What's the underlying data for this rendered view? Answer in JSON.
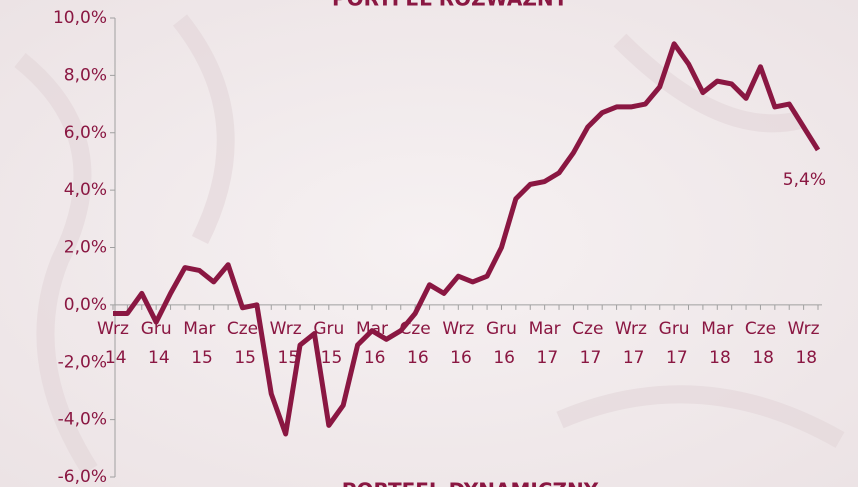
{
  "chart_data": {
    "type": "line",
    "title": "PORTFEL ROZWAŻNY",
    "subtitle": "PORTFEL DYNAMICZNY",
    "categories": [
      "Wrz 14",
      null,
      null,
      "Gru 14",
      null,
      null,
      "Mar 15",
      null,
      null,
      "Cze 15",
      null,
      null,
      "Wrz 15",
      null,
      null,
      "Gru 15",
      null,
      null,
      "Mar 16",
      null,
      null,
      "Cze 16",
      null,
      null,
      "Wrz 16",
      null,
      null,
      "Gru 16",
      null,
      null,
      "Mar 17",
      null,
      null,
      "Cze 17",
      null,
      null,
      "Wrz 17",
      null,
      null,
      "Gru 17",
      null,
      null,
      "Mar 18",
      null,
      null,
      "Cze 18",
      null,
      null,
      "Wrz 18",
      null
    ],
    "series": [
      {
        "name": "Portfel rozważny",
        "color": "#8a1742",
        "values": [
          -0.3,
          -0.3,
          0.4,
          -0.6,
          0.4,
          1.3,
          1.2,
          0.8,
          1.4,
          -0.1,
          0.0,
          -3.1,
          -4.5,
          -1.4,
          -1.0,
          -4.2,
          -3.5,
          -1.4,
          -0.9,
          -1.2,
          -0.9,
          -0.3,
          0.7,
          0.4,
          1.0,
          0.8,
          1.0,
          2.0,
          3.7,
          4.2,
          4.3,
          4.6,
          5.3,
          6.2,
          6.7,
          6.9,
          6.9,
          7.0,
          7.6,
          9.1,
          8.4,
          7.4,
          7.8,
          7.7,
          7.2,
          8.3,
          6.9,
          7.0,
          6.2,
          5.4
        ]
      }
    ],
    "annotations": [
      {
        "text": "5,4%",
        "index": 49
      }
    ],
    "ylim": [
      -6,
      10
    ],
    "yticks": [
      {
        "value": -6,
        "label": "-6,0%"
      },
      {
        "value": -4,
        "label": "-4,0%"
      },
      {
        "value": -2,
        "label": "-2,0%"
      },
      {
        "value": 0,
        "label": "0,0%"
      },
      {
        "value": 2,
        "label": "2,0%"
      },
      {
        "value": 4,
        "label": "4,0%"
      },
      {
        "value": 6,
        "label": "6,0%"
      },
      {
        "value": 8,
        "label": "8,0%"
      },
      {
        "value": 10,
        "label": "10,0%"
      }
    ],
    "grid": false
  }
}
